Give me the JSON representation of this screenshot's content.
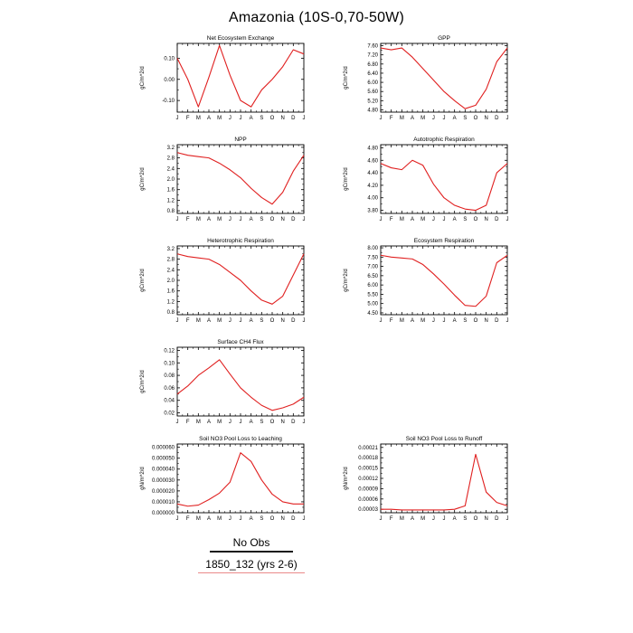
{
  "title": "Amazonia (10S-0,70-50W)",
  "legend": {
    "entries": [
      {
        "label": "No Obs",
        "color": "#1a1a1a"
      },
      {
        "label": "1850_132 (yrs 2-6)",
        "color": "#ea8a8a"
      }
    ]
  },
  "chart_data": [
    {
      "type": "line",
      "title": "Net Ecosystem Exchange",
      "ylabel": "gC/m^2/d",
      "categories": [
        "J",
        "F",
        "M",
        "A",
        "M",
        "J",
        "J",
        "A",
        "S",
        "O",
        "N",
        "D",
        "J"
      ],
      "values": [
        0.1,
        0.0,
        -0.13,
        0.01,
        0.16,
        0.02,
        -0.1,
        -0.13,
        -0.05,
        0.0,
        0.06,
        0.14,
        0.12
      ],
      "yticks": [
        "-0.10",
        "0.00",
        "0.10"
      ],
      "ylim": [
        -0.155,
        0.17
      ],
      "color": "#e02020",
      "legend_series": "1850_132 (yrs 2-6)",
      "grid": false
    },
    {
      "type": "line",
      "title": "GPP",
      "ylabel": "gC/m^2/d",
      "categories": [
        "J",
        "F",
        "M",
        "A",
        "M",
        "J",
        "J",
        "A",
        "S",
        "O",
        "N",
        "D",
        "J"
      ],
      "values": [
        7.5,
        7.42,
        7.5,
        7.1,
        6.6,
        6.1,
        5.6,
        5.2,
        4.85,
        5.0,
        5.7,
        6.9,
        7.5
      ],
      "yticks": [
        "4.80",
        "5.20",
        "5.60",
        "6.00",
        "6.40",
        "6.80",
        "7.20",
        "7.60"
      ],
      "ylim": [
        4.7,
        7.7
      ],
      "color": "#e02020",
      "legend_series": "1850_132 (yrs 2-6)",
      "grid": false
    },
    {
      "type": "line",
      "title": "NPP",
      "ylabel": "gC/m^2/d",
      "categories": [
        "J",
        "F",
        "M",
        "A",
        "M",
        "J",
        "J",
        "A",
        "S",
        "O",
        "N",
        "D",
        "J"
      ],
      "values": [
        3.0,
        2.9,
        2.85,
        2.8,
        2.6,
        2.35,
        2.05,
        1.65,
        1.3,
        1.05,
        1.5,
        2.3,
        2.9
      ],
      "yticks": [
        "0.8",
        "1.2",
        "1.6",
        "2.0",
        "2.4",
        "2.8",
        "3.2"
      ],
      "ylim": [
        0.7,
        3.3
      ],
      "color": "#e02020",
      "legend_series": "1850_132 (yrs 2-6)",
      "grid": false
    },
    {
      "type": "line",
      "title": "Autotrophic Respiration",
      "ylabel": "gC/m^2/d",
      "categories": [
        "J",
        "F",
        "M",
        "A",
        "M",
        "J",
        "J",
        "A",
        "S",
        "O",
        "N",
        "D",
        "J"
      ],
      "values": [
        4.55,
        4.48,
        4.45,
        4.6,
        4.52,
        4.22,
        4.0,
        3.88,
        3.82,
        3.8,
        3.88,
        4.4,
        4.55
      ],
      "yticks": [
        "3.80",
        "4.00",
        "4.20",
        "4.40",
        "4.60",
        "4.80"
      ],
      "ylim": [
        3.75,
        4.85
      ],
      "color": "#e02020",
      "legend_series": "1850_132 (yrs 2-6)",
      "grid": false
    },
    {
      "type": "line",
      "title": "Heterotrophic Respiration",
      "ylabel": "gC/m^2/d",
      "categories": [
        "J",
        "F",
        "M",
        "A",
        "M",
        "J",
        "J",
        "A",
        "S",
        "O",
        "N",
        "D",
        "J"
      ],
      "values": [
        3.0,
        2.9,
        2.85,
        2.8,
        2.6,
        2.3,
        2.0,
        1.6,
        1.25,
        1.1,
        1.4,
        2.2,
        3.0
      ],
      "yticks": [
        "0.8",
        "1.2",
        "1.6",
        "2.0",
        "2.4",
        "2.8",
        "3.2"
      ],
      "ylim": [
        0.7,
        3.3
      ],
      "color": "#e02020",
      "legend_series": "1850_132 (yrs 2-6)",
      "grid": false
    },
    {
      "type": "line",
      "title": "Ecosystem Respiration",
      "ylabel": "gC/m^2/d",
      "categories": [
        "J",
        "F",
        "M",
        "A",
        "M",
        "J",
        "J",
        "A",
        "S",
        "O",
        "N",
        "D",
        "J"
      ],
      "values": [
        7.6,
        7.5,
        7.45,
        7.4,
        7.1,
        6.6,
        6.05,
        5.45,
        4.9,
        4.85,
        5.4,
        7.2,
        7.6
      ],
      "yticks": [
        "4.50",
        "5.00",
        "5.50",
        "6.00",
        "6.50",
        "7.00",
        "7.50",
        "8.00"
      ],
      "ylim": [
        4.4,
        8.1
      ],
      "color": "#e02020",
      "legend_series": "1850_132 (yrs 2-6)",
      "grid": false
    },
    {
      "type": "line",
      "title": "Surface CH4 Flux",
      "ylabel": "gC/m^2/d",
      "categories": [
        "J",
        "F",
        "M",
        "A",
        "M",
        "J",
        "J",
        "A",
        "S",
        "O",
        "N",
        "D",
        "J"
      ],
      "values": [
        0.05,
        0.063,
        0.08,
        0.092,
        0.105,
        0.082,
        0.06,
        0.045,
        0.032,
        0.024,
        0.028,
        0.034,
        0.045
      ],
      "yticks": [
        "0.02",
        "0.04",
        "0.06",
        "0.08",
        "0.10",
        "0.12"
      ],
      "ylim": [
        0.015,
        0.125
      ],
      "color": "#e02020",
      "legend_series": "1850_132 (yrs 2-6)",
      "grid": false
    },
    {
      "type": "line",
      "title": "Soil NO3 Pool Loss to Leaching",
      "ylabel": "gN/m^2/d",
      "categories": [
        "J",
        "F",
        "M",
        "A",
        "M",
        "J",
        "J",
        "A",
        "S",
        "O",
        "N",
        "D",
        "J"
      ],
      "values": [
        8e-06,
        6e-06,
        7e-06,
        1.2e-05,
        1.8e-05,
        2.8e-05,
        5.5e-05,
        4.7e-05,
        3e-05,
        1.7e-05,
        1e-05,
        8e-06,
        8e-06
      ],
      "yticks": [
        "0.000000",
        "0.000010",
        "0.000020",
        "0.000030",
        "0.000040",
        "0.000050",
        "0.000060"
      ],
      "ylim": [
        0.0,
        6.3e-05
      ],
      "color": "#e02020",
      "legend_series": "1850_132 (yrs 2-6)",
      "grid": false
    },
    {
      "type": "line",
      "title": "Soil NO3 Pool Loss to Runoff",
      "ylabel": "gN/m^2/d",
      "categories": [
        "J",
        "F",
        "M",
        "A",
        "M",
        "J",
        "J",
        "A",
        "S",
        "O",
        "N",
        "D",
        "J"
      ],
      "values": [
        3e-05,
        3e-05,
        2.8e-05,
        2.8e-05,
        2.8e-05,
        2.8e-05,
        2.8e-05,
        3e-05,
        4e-05,
        0.00019,
        8e-05,
        5e-05,
        4e-05
      ],
      "yticks": [
        "0.00003",
        "0.00006",
        "0.00009",
        "0.00012",
        "0.00015",
        "0.00018",
        "0.00021"
      ],
      "ylim": [
        2e-05,
        0.00022
      ],
      "color": "#e02020",
      "legend_series": "1850_132 (yrs 2-6)",
      "grid": false
    }
  ]
}
